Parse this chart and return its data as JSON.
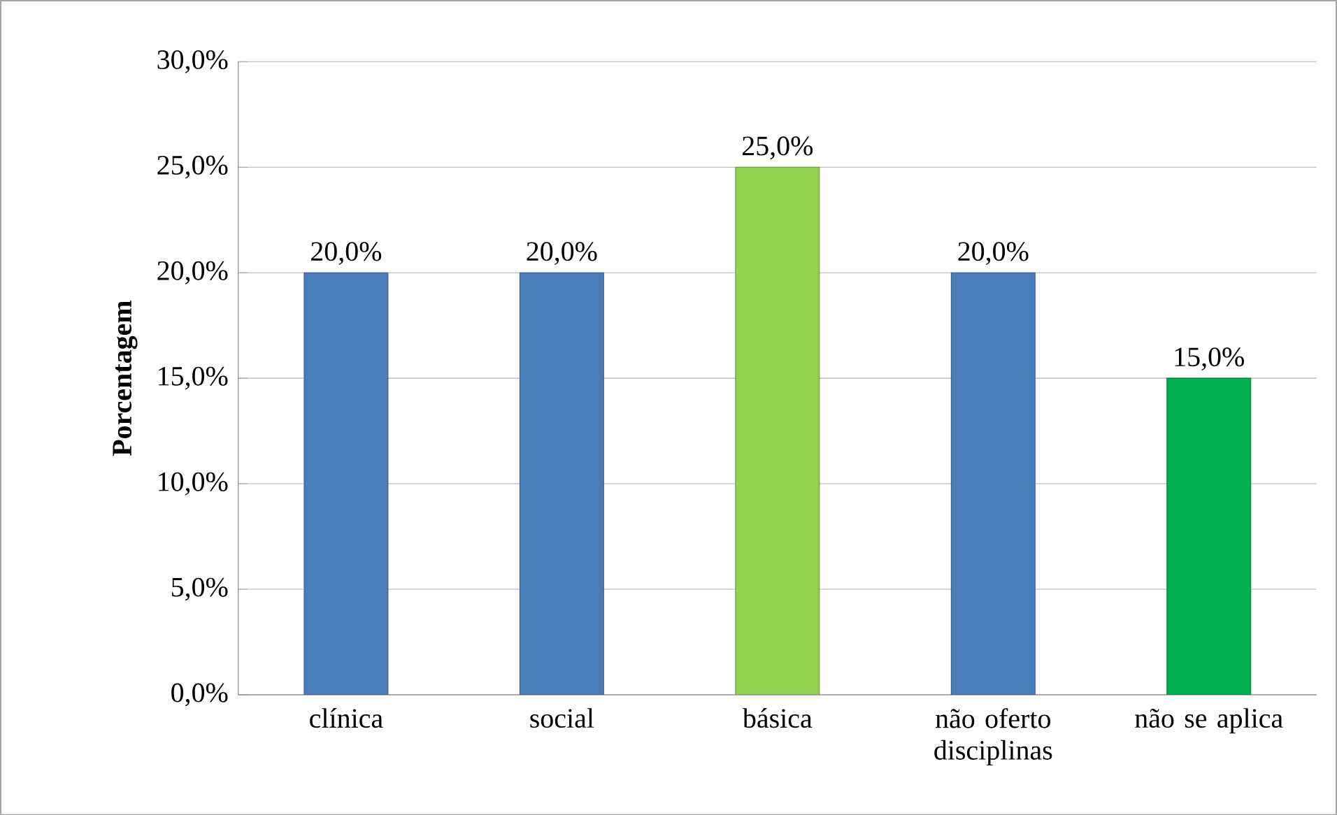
{
  "chart_data": {
    "type": "bar",
    "ylabel": "Porcentagem",
    "categories": [
      "clínica",
      "social",
      "básica",
      "não oferto disciplinas",
      "não se aplica"
    ],
    "values": [
      20,
      20,
      25,
      20,
      15
    ],
    "colors": [
      "#4a7ebb",
      "#4a7ebb",
      "#92d050",
      "#4a7ebb",
      "#00b050"
    ],
    "value_labels": [
      "20,0%",
      "20,0%",
      "25,0%",
      "20,0%",
      "15,0%"
    ],
    "ylim": [
      0,
      30
    ],
    "yticks": [
      {
        "value": 0,
        "label": "0,0%"
      },
      {
        "value": 5,
        "label": "5,0%"
      },
      {
        "value": 10,
        "label": "10,0%"
      },
      {
        "value": 15,
        "label": "15,0%"
      },
      {
        "value": 20,
        "label": "20,0%"
      },
      {
        "value": 25,
        "label": "25,0%"
      },
      {
        "value": 30,
        "label": "30,0%"
      }
    ],
    "grid": "y"
  }
}
